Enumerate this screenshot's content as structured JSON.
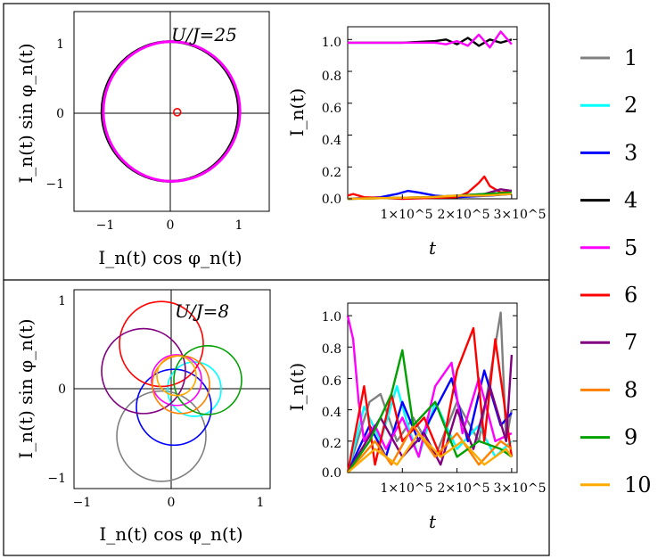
{
  "colors": {
    "1": "#808080",
    "2": "#00ffff",
    "3": "#0000ff",
    "4": "#000000",
    "5": "#ff00ff",
    "6": "#ff0000",
    "7": "#800080",
    "8": "#ff8000",
    "9": "#00a000",
    "10": "#ffaa00"
  },
  "legend": [
    "1",
    "2",
    "3",
    "4",
    "5",
    "6",
    "7",
    "8",
    "9",
    "10"
  ],
  "panels": [
    {
      "annotation": "U/J=25",
      "phase_plot": {
        "xlabel": "I_n(t) cos φ_n(t)",
        "ylabel": "I_n(t) sin φ_n(t)",
        "xlim": [
          -1.4,
          1.4
        ],
        "ylim": [
          -1.4,
          1.4
        ],
        "xticks": [
          "−1",
          "0",
          "1"
        ],
        "yticks": [
          "1",
          "0",
          "−1"
        ]
      },
      "time_plot": {
        "xlabel": "t",
        "ylabel": "I_n(t)",
        "yticks": [
          "1.0",
          "0.8",
          "0.6",
          "0.4",
          "0.2",
          "0.0"
        ],
        "xticks": [
          "1×10^5",
          "2×10^5",
          "3×10^5"
        ]
      }
    },
    {
      "annotation": "U/J=8",
      "phase_plot": {
        "xlabel": "I_n(t) cos φ_n(t)",
        "ylabel": "I_n(t) sin φ_n(t)",
        "xlim": [
          -1.1,
          1.1
        ],
        "ylim": [
          -1.1,
          1.1
        ],
        "xticks": [
          "−1",
          "0",
          "1"
        ],
        "yticks": [
          "1",
          "0",
          "−1"
        ]
      },
      "time_plot": {
        "xlabel": "t",
        "ylabel": "I_n(t)",
        "yticks": [
          "1.0",
          "0.8",
          "0.6",
          "0.4",
          "0.2",
          "0.0"
        ],
        "xticks": [
          "1×10^5",
          "2×10^5",
          "3×10^5"
        ]
      }
    }
  ],
  "chart_data": [
    {
      "type": "scatter",
      "title": "",
      "annotation": "U/J=25",
      "xlabel": "I_n(t) cos φ_n(t)",
      "ylabel": "I_n(t) sin φ_n(t)",
      "xlim": [
        -1.4,
        1.4
      ],
      "ylim": [
        -1.4,
        1.4
      ],
      "series": [
        {
          "name": "4",
          "kind": "circle",
          "cx": -0.02,
          "cy": 0.0,
          "r": 0.98
        },
        {
          "name": "5",
          "kind": "circle",
          "cx": 0.0,
          "cy": 0.0,
          "r": 0.98
        },
        {
          "name": "6",
          "kind": "circle",
          "cx": 0.08,
          "cy": -0.01,
          "r": 0.05
        }
      ]
    },
    {
      "type": "line",
      "title": "",
      "xlabel": "t",
      "ylabel": "I_n(t)",
      "xlim": [
        0,
        310000
      ],
      "ylim": [
        0,
        1.08
      ],
      "series": [
        {
          "name": "4",
          "x": [
            0,
            100000,
            160000,
            180000,
            200000,
            220000,
            240000,
            260000,
            280000,
            300000
          ],
          "y": [
            0.98,
            0.98,
            0.99,
            1.0,
            0.97,
            1.01,
            0.96,
            1.0,
            0.98,
            1.0
          ]
        },
        {
          "name": "5",
          "x": [
            0,
            100000,
            160000,
            180000,
            200000,
            220000,
            240000,
            260000,
            280000,
            300000
          ],
          "y": [
            0.98,
            0.98,
            0.98,
            0.97,
            0.99,
            0.96,
            1.03,
            0.95,
            1.05,
            0.97
          ]
        },
        {
          "name": "3",
          "x": [
            0,
            60000,
            90000,
            110000,
            130000,
            160000,
            200000,
            260000,
            300000
          ],
          "y": [
            0.0,
            0.01,
            0.03,
            0.05,
            0.04,
            0.02,
            0.01,
            0.02,
            0.03
          ]
        },
        {
          "name": "6",
          "x": [
            0,
            10000,
            30000,
            100000,
            200000,
            220000,
            240000,
            250000,
            260000,
            280000,
            300000
          ],
          "y": [
            0.02,
            0.03,
            0.01,
            0.0,
            0.01,
            0.04,
            0.1,
            0.14,
            0.08,
            0.04,
            0.05
          ]
        },
        {
          "name": "7",
          "x": [
            0,
            150000,
            200000,
            250000,
            280000,
            300000
          ],
          "y": [
            0.0,
            0.01,
            0.02,
            0.03,
            0.06,
            0.05
          ]
        },
        {
          "name": "9",
          "x": [
            0,
            150000,
            200000,
            250000,
            300000
          ],
          "y": [
            0.0,
            0.01,
            0.02,
            0.03,
            0.04
          ]
        },
        {
          "name": "10",
          "x": [
            0,
            150000,
            200000,
            250000,
            300000
          ],
          "y": [
            0.0,
            0.01,
            0.02,
            0.02,
            0.03
          ]
        }
      ]
    },
    {
      "type": "scatter",
      "title": "",
      "annotation": "U/J=8",
      "xlabel": "I_n(t) cos φ_n(t)",
      "ylabel": "I_n(t) sin φ_n(t)",
      "xlim": [
        -1.1,
        1.1
      ],
      "ylim": [
        -1.1,
        1.1
      ],
      "series": [
        {
          "name": "1",
          "kind": "circle",
          "cx": -0.12,
          "cy": -0.52,
          "r": 0.5
        },
        {
          "name": "2",
          "kind": "circle",
          "cx": 0.25,
          "cy": 0.0,
          "r": 0.3
        },
        {
          "name": "3",
          "kind": "circle",
          "cx": 0.02,
          "cy": -0.2,
          "r": 0.42
        },
        {
          "name": "5",
          "kind": "circle",
          "cx": 0.05,
          "cy": 0.1,
          "r": 0.28
        },
        {
          "name": "6",
          "kind": "circle",
          "cx": -0.12,
          "cy": 0.5,
          "r": 0.47
        },
        {
          "name": "7",
          "kind": "circle",
          "cx": -0.32,
          "cy": 0.2,
          "r": 0.47
        },
        {
          "name": "8",
          "kind": "circle",
          "cx": 0.1,
          "cy": 0.05,
          "r": 0.32
        },
        {
          "name": "9",
          "kind": "circle",
          "cx": 0.4,
          "cy": 0.1,
          "r": 0.38
        },
        {
          "name": "10",
          "kind": "circle",
          "cx": 0.05,
          "cy": 0.15,
          "r": 0.22
        }
      ]
    },
    {
      "type": "line",
      "title": "",
      "xlabel": "t",
      "ylabel": "I_n(t)",
      "xlim": [
        0,
        310000
      ],
      "ylim": [
        0,
        1.08
      ],
      "series": [
        {
          "name": "1",
          "x": [
            0,
            40000,
            60000,
            90000,
            120000,
            160000,
            200000,
            240000,
            260000,
            280000,
            290000,
            300000
          ],
          "y": [
            0.0,
            0.45,
            0.5,
            0.2,
            0.35,
            0.1,
            0.45,
            0.2,
            0.6,
            1.02,
            0.2,
            0.4
          ]
        },
        {
          "name": "2",
          "x": [
            0,
            30000,
            60000,
            90000,
            110000,
            130000,
            160000,
            200000,
            240000,
            270000,
            300000
          ],
          "y": [
            0.0,
            0.42,
            0.2,
            0.55,
            0.3,
            0.1,
            0.45,
            0.15,
            0.3,
            0.1,
            0.2
          ]
        },
        {
          "name": "3",
          "x": [
            0,
            40000,
            70000,
            100000,
            130000,
            160000,
            190000,
            220000,
            250000,
            280000,
            300000
          ],
          "y": [
            0.0,
            0.3,
            0.1,
            0.45,
            0.2,
            0.4,
            0.6,
            0.2,
            0.65,
            0.3,
            0.38
          ]
        },
        {
          "name": "5",
          "x": [
            0,
            10000,
            20000,
            30000,
            50000,
            70000,
            100000,
            130000,
            160000,
            190000,
            210000,
            240000,
            270000,
            300000
          ],
          "y": [
            1.0,
            0.85,
            0.45,
            0.2,
            0.3,
            0.15,
            0.35,
            0.1,
            0.55,
            0.7,
            0.25,
            0.6,
            0.2,
            0.25
          ]
        },
        {
          "name": "6",
          "x": [
            0,
            30000,
            50000,
            80000,
            100000,
            140000,
            170000,
            200000,
            230000,
            250000,
            270000,
            300000
          ],
          "y": [
            0.0,
            0.55,
            0.05,
            0.5,
            0.2,
            0.35,
            0.1,
            0.65,
            0.92,
            0.2,
            0.85,
            0.1
          ]
        },
        {
          "name": "7",
          "x": [
            0,
            60000,
            100000,
            140000,
            170000,
            200000,
            230000,
            260000,
            290000,
            300000
          ],
          "y": [
            0.0,
            0.35,
            0.1,
            0.25,
            0.05,
            0.4,
            0.15,
            0.55,
            0.2,
            0.75
          ]
        },
        {
          "name": "8",
          "x": [
            0,
            50000,
            80000,
            120000,
            160000,
            200000,
            240000,
            280000,
            300000
          ],
          "y": [
            0.0,
            0.2,
            0.05,
            0.3,
            0.1,
            0.25,
            0.05,
            0.2,
            0.15
          ]
        },
        {
          "name": "9",
          "x": [
            0,
            40000,
            80000,
            100000,
            120000,
            160000,
            200000,
            240000,
            280000,
            300000
          ],
          "y": [
            0.0,
            0.2,
            0.5,
            0.78,
            0.3,
            0.45,
            0.1,
            0.2,
            0.15,
            0.1
          ]
        },
        {
          "name": "10",
          "x": [
            0,
            50000,
            90000,
            130000,
            170000,
            210000,
            250000,
            290000,
            300000
          ],
          "y": [
            0.0,
            0.15,
            0.05,
            0.25,
            0.1,
            0.2,
            0.05,
            0.15,
            0.1
          ]
        }
      ]
    }
  ]
}
